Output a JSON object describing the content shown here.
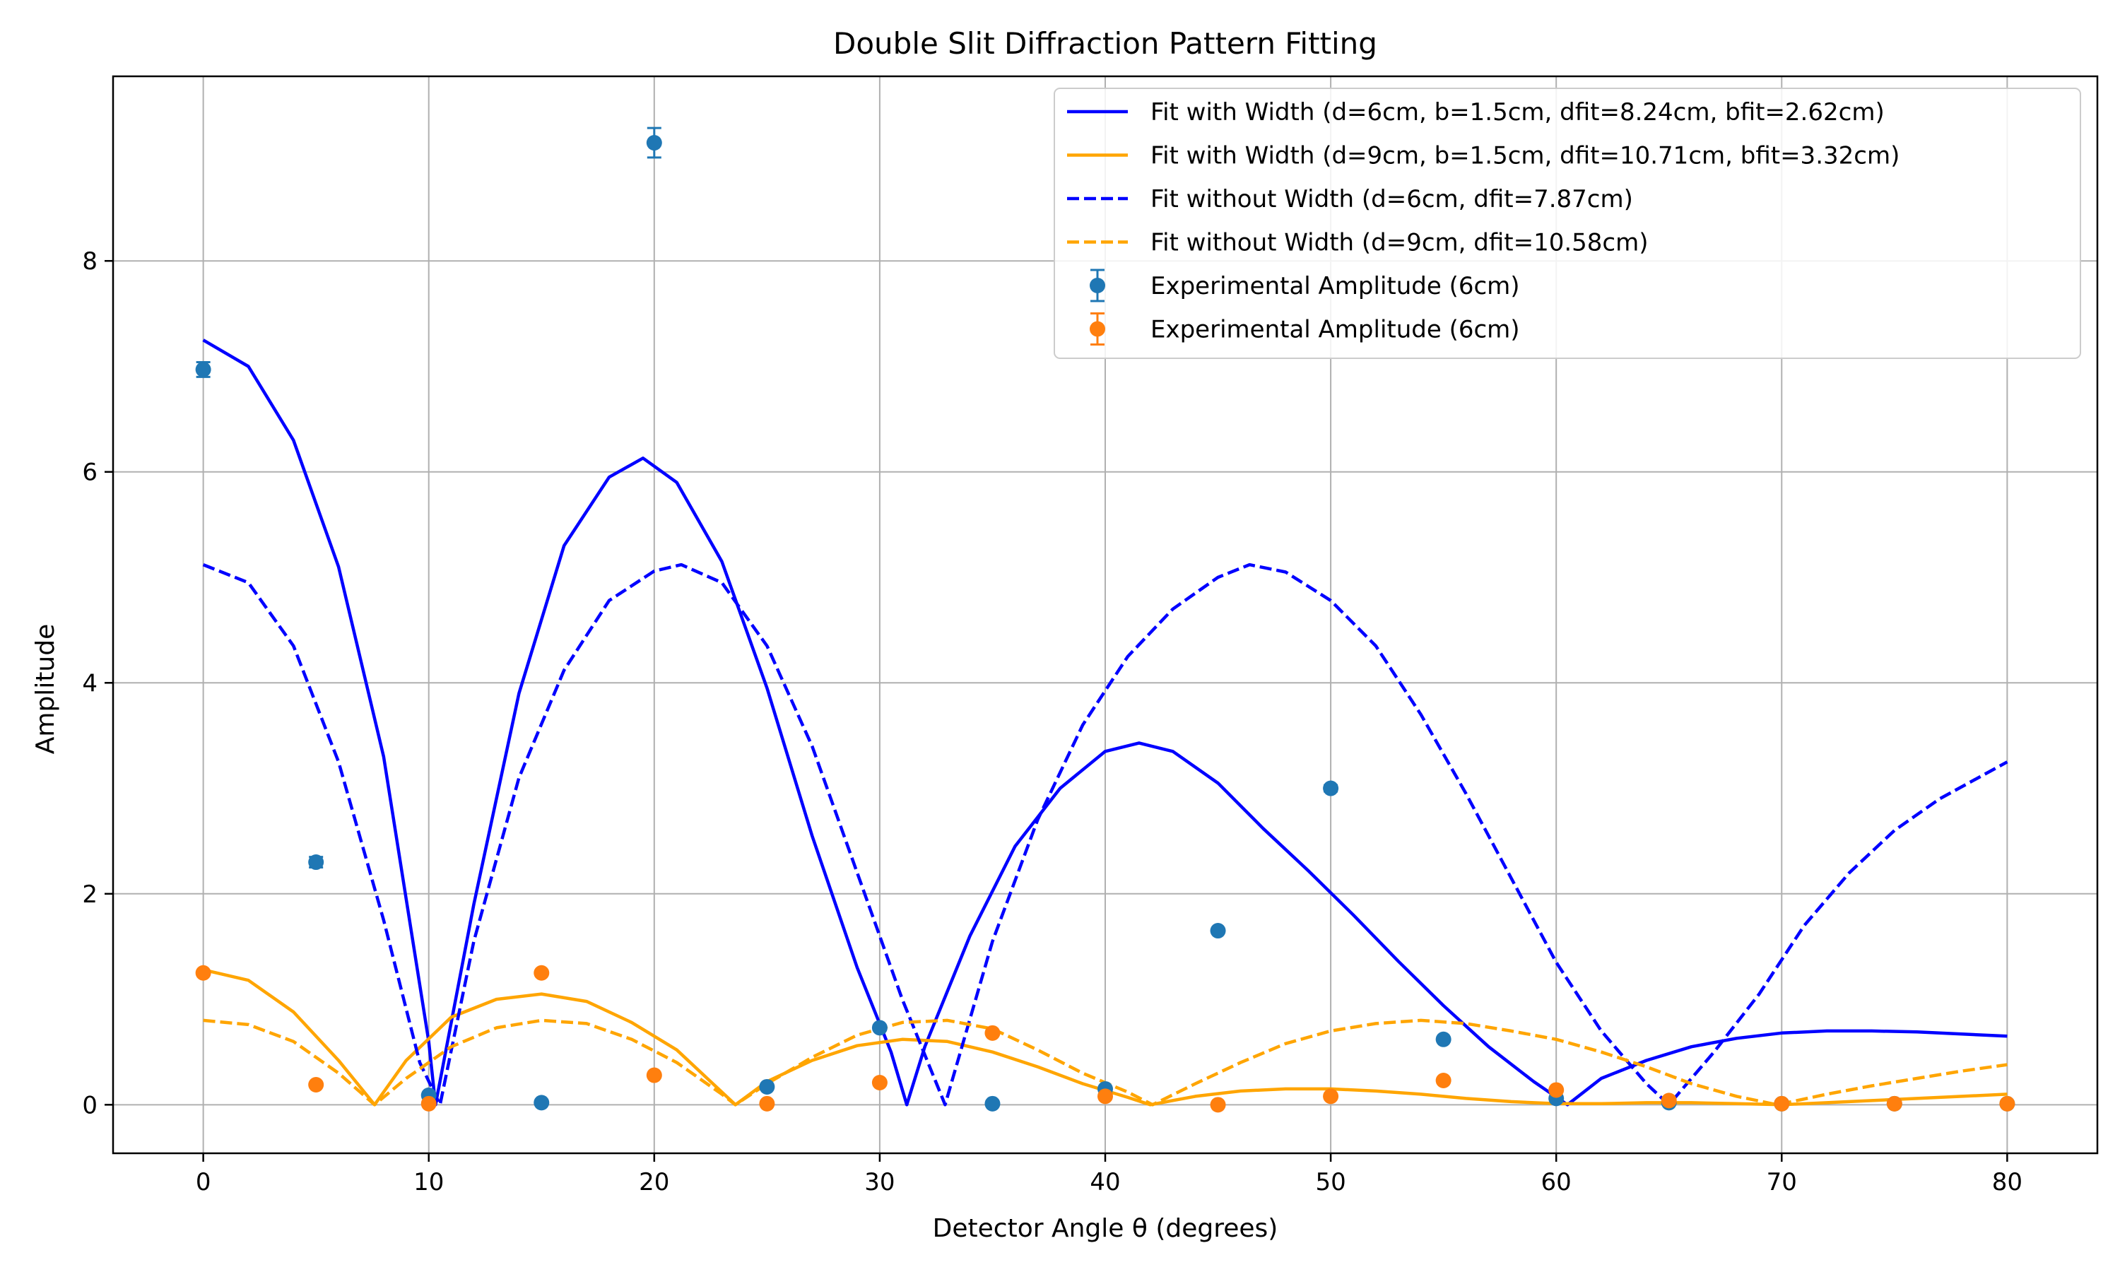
{
  "chart_data": {
    "type": "line",
    "title": "Double Slit Diffraction Pattern Fitting",
    "xlabel": "Detector Angle θ (degrees)",
    "ylabel": "Amplitude",
    "xlim": [
      -4,
      84
    ],
    "ylim": [
      -0.46,
      9.75
    ],
    "xticks": [
      0,
      10,
      20,
      30,
      40,
      50,
      60,
      70,
      80
    ],
    "yticks": [
      0,
      2,
      4,
      6,
      8
    ],
    "grid": true,
    "legend_position": "top-right",
    "colors": {
      "fit_6": "#0000ff",
      "fit_9": "#ffa500",
      "exp_6": "#1f77b4",
      "exp_9": "#ff7f0e",
      "grid": "#b0b0b0"
    },
    "series": [
      {
        "name": "Fit with Width (d=6cm, b=1.5cm, dfit=8.24cm, bfit=2.62cm)",
        "kind": "line",
        "style": "solid",
        "color": "#0000ff",
        "x": [
          0,
          2,
          4,
          6,
          8,
          10,
          10.3,
          12,
          14,
          16,
          18,
          19.5,
          21,
          23,
          25,
          27,
          29,
          30.5,
          31.2,
          32,
          34,
          36,
          38,
          40,
          41.5,
          43,
          45,
          47,
          49,
          51,
          53,
          55,
          57,
          59,
          60.5,
          62,
          64,
          66,
          68,
          70,
          72,
          74,
          76,
          78,
          80
        ],
        "y": [
          7.25,
          7.0,
          6.3,
          5.1,
          3.3,
          0.6,
          0.0,
          1.9,
          3.9,
          5.3,
          5.95,
          6.13,
          5.9,
          5.15,
          3.95,
          2.55,
          1.3,
          0.5,
          0.0,
          0.55,
          1.6,
          2.45,
          3.0,
          3.35,
          3.43,
          3.35,
          3.05,
          2.62,
          2.22,
          1.8,
          1.36,
          0.94,
          0.55,
          0.22,
          0.0,
          0.25,
          0.42,
          0.55,
          0.63,
          0.68,
          0.7,
          0.7,
          0.69,
          0.67,
          0.65
        ]
      },
      {
        "name": "Fit with Width (d=9cm, b=1.5cm, dfit=10.71cm, bfit=3.32cm)",
        "kind": "line",
        "style": "solid",
        "color": "#ffa500",
        "x": [
          0,
          2,
          4,
          6,
          7.6,
          9,
          11,
          13,
          15,
          17,
          19,
          21,
          23,
          23.6,
          25,
          27,
          29,
          31,
          33,
          35,
          37,
          39,
          41,
          42,
          44,
          46,
          48,
          50,
          52,
          54,
          56,
          58,
          60,
          62,
          64,
          66,
          68,
          70,
          72,
          74,
          76,
          78,
          80
        ],
        "y": [
          1.28,
          1.18,
          0.88,
          0.42,
          0.0,
          0.42,
          0.83,
          1.0,
          1.05,
          0.98,
          0.78,
          0.52,
          0.12,
          0.0,
          0.22,
          0.42,
          0.56,
          0.62,
          0.6,
          0.5,
          0.36,
          0.2,
          0.07,
          0.0,
          0.08,
          0.13,
          0.15,
          0.15,
          0.13,
          0.1,
          0.06,
          0.03,
          0.01,
          0.01,
          0.02,
          0.02,
          0.01,
          0.0,
          0.02,
          0.04,
          0.06,
          0.08,
          0.1
        ]
      },
      {
        "name": "Fit without Width (d=6cm, dfit=7.87cm)",
        "kind": "line",
        "style": "dashed",
        "color": "#0000ff",
        "x": [
          0,
          2,
          4,
          6,
          8,
          9.6,
          10.5,
          12,
          14,
          16,
          18,
          20,
          21.2,
          23,
          25,
          27,
          29,
          31,
          32.9,
          35,
          37,
          39,
          41,
          43,
          45,
          46.4,
          48,
          50,
          52,
          54,
          56,
          58,
          60,
          62,
          64,
          65,
          67,
          69,
          71,
          73,
          75,
          77,
          80
        ],
        "y": [
          5.12,
          4.95,
          4.35,
          3.25,
          1.75,
          0.4,
          0.0,
          1.55,
          3.1,
          4.12,
          4.78,
          5.06,
          5.12,
          4.95,
          4.35,
          3.4,
          2.2,
          1.0,
          0.0,
          1.55,
          2.7,
          3.6,
          4.25,
          4.7,
          5.0,
          5.12,
          5.05,
          4.78,
          4.35,
          3.7,
          2.95,
          2.15,
          1.35,
          0.7,
          0.2,
          0.0,
          0.5,
          1.05,
          1.7,
          2.2,
          2.6,
          2.9,
          3.25
        ]
      },
      {
        "name": "Fit without Width (d=9cm, dfit=10.58cm)",
        "kind": "line",
        "style": "dashed",
        "color": "#ffa500",
        "x": [
          0,
          2,
          4,
          6,
          7.6,
          9,
          11,
          13,
          15,
          17,
          19,
          21,
          23,
          23.6,
          25,
          27,
          29,
          31,
          33,
          35,
          37,
          39,
          41,
          42.1,
          44,
          46,
          48,
          50,
          52,
          54,
          56,
          58,
          60,
          62,
          64,
          66,
          68,
          69.8,
          72,
          74,
          76,
          78,
          80
        ],
        "y": [
          0.8,
          0.76,
          0.6,
          0.3,
          0.0,
          0.25,
          0.55,
          0.73,
          0.8,
          0.77,
          0.62,
          0.4,
          0.1,
          0.0,
          0.2,
          0.45,
          0.66,
          0.78,
          0.8,
          0.72,
          0.52,
          0.3,
          0.12,
          0.0,
          0.2,
          0.4,
          0.58,
          0.7,
          0.77,
          0.8,
          0.77,
          0.7,
          0.62,
          0.5,
          0.36,
          0.2,
          0.08,
          0.0,
          0.1,
          0.18,
          0.25,
          0.32,
          0.38
        ]
      },
      {
        "name": "Experimental Amplitude (6cm)",
        "kind": "errorbar",
        "color": "#1f77b4",
        "x": [
          0,
          5,
          10,
          15,
          20,
          25,
          30,
          35,
          40,
          45,
          50,
          55,
          60,
          65,
          70,
          75,
          80
        ],
        "y": [
          6.97,
          2.3,
          0.09,
          0.02,
          9.12,
          0.17,
          0.73,
          0.01,
          0.15,
          1.65,
          3.0,
          0.62,
          0.06,
          0.02,
          0.01,
          0.01,
          0.01
        ],
        "yerr": [
          0.07,
          0.05,
          0.01,
          0.01,
          0.14,
          0.01,
          0.02,
          0.01,
          0.01,
          0.02,
          0.03,
          0.01,
          0.01,
          0.01,
          0.01,
          0.01,
          0.01
        ]
      },
      {
        "name": "Experimental Amplitude (6cm)",
        "kind": "errorbar",
        "color": "#ff7f0e",
        "x": [
          0,
          5,
          10,
          15,
          20,
          25,
          30,
          35,
          40,
          45,
          50,
          55,
          60,
          65,
          70,
          75,
          80
        ],
        "y": [
          1.25,
          0.19,
          0.01,
          1.25,
          0.28,
          0.01,
          0.21,
          0.68,
          0.08,
          0.0,
          0.08,
          0.23,
          0.14,
          0.04,
          0.01,
          0.01,
          0.01
        ],
        "yerr": [
          0.02,
          0.01,
          0.01,
          0.02,
          0.01,
          0.01,
          0.01,
          0.01,
          0.01,
          0.01,
          0.01,
          0.01,
          0.01,
          0.01,
          0.01,
          0.01,
          0.01
        ]
      }
    ]
  }
}
